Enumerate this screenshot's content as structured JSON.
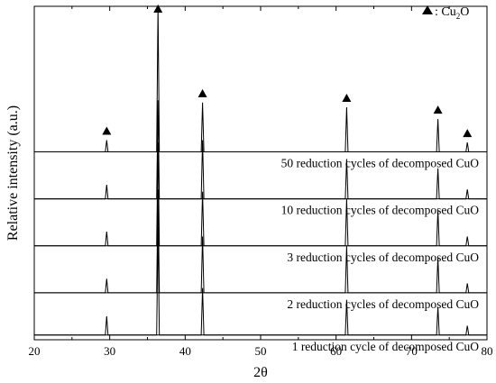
{
  "chart_data": {
    "type": "line",
    "title": "",
    "xlabel": "2θ",
    "ylabel": "Relative intensity (a.u.)",
    "xlim": [
      20,
      80
    ],
    "xticks": [
      20,
      30,
      40,
      50,
      60,
      70,
      80
    ],
    "y_ticks_shown": false,
    "grid": false,
    "legend": {
      "marker": "filled-triangle",
      "text": ": Cu",
      "subscript": "2",
      "suffix": "O",
      "placement": "top-right"
    },
    "peak_markers_x": [
      29.6,
      36.4,
      42.3,
      61.4,
      73.5,
      77.4
    ],
    "series": [
      {
        "name": "1 reduction cycle of decomposed CuO",
        "baseline": 0.1,
        "peaks": [
          [
            29.6,
            0.4
          ],
          [
            36.4,
            2.3
          ],
          [
            42.3,
            1.0
          ],
          [
            61.4,
            0.75
          ],
          [
            73.5,
            0.6
          ],
          [
            77.4,
            0.2
          ]
        ]
      },
      {
        "name": "2 reduction cycles of decomposed CuO",
        "baseline": 1.0,
        "peaks": [
          [
            29.6,
            0.3
          ],
          [
            36.4,
            2.2
          ],
          [
            42.3,
            1.2
          ],
          [
            61.4,
            1.0
          ],
          [
            73.5,
            0.75
          ],
          [
            77.4,
            0.2
          ]
        ]
      },
      {
        "name": "3 reduction cycles of decomposed CuO",
        "baseline": 2.0,
        "peaks": [
          [
            29.6,
            0.3
          ],
          [
            36.4,
            2.2
          ],
          [
            42.3,
            1.15
          ],
          [
            61.4,
            1.0
          ],
          [
            73.5,
            0.75
          ],
          [
            77.4,
            0.2
          ]
        ]
      },
      {
        "name": "10 reduction cycles of decomposed CuO",
        "baseline": 3.0,
        "peaks": [
          [
            29.6,
            0.3
          ],
          [
            36.4,
            2.1
          ],
          [
            42.3,
            1.25
          ],
          [
            61.4,
            0.85
          ],
          [
            73.5,
            0.65
          ],
          [
            77.4,
            0.2
          ]
        ]
      },
      {
        "name": "50 reduction cycles of decomposed CuO",
        "baseline": 4.0,
        "peaks": [
          [
            29.6,
            0.25
          ],
          [
            36.4,
            3.1
          ],
          [
            42.3,
            1.05
          ],
          [
            61.4,
            0.95
          ],
          [
            73.5,
            0.7
          ],
          [
            77.4,
            0.2
          ]
        ]
      }
    ]
  }
}
